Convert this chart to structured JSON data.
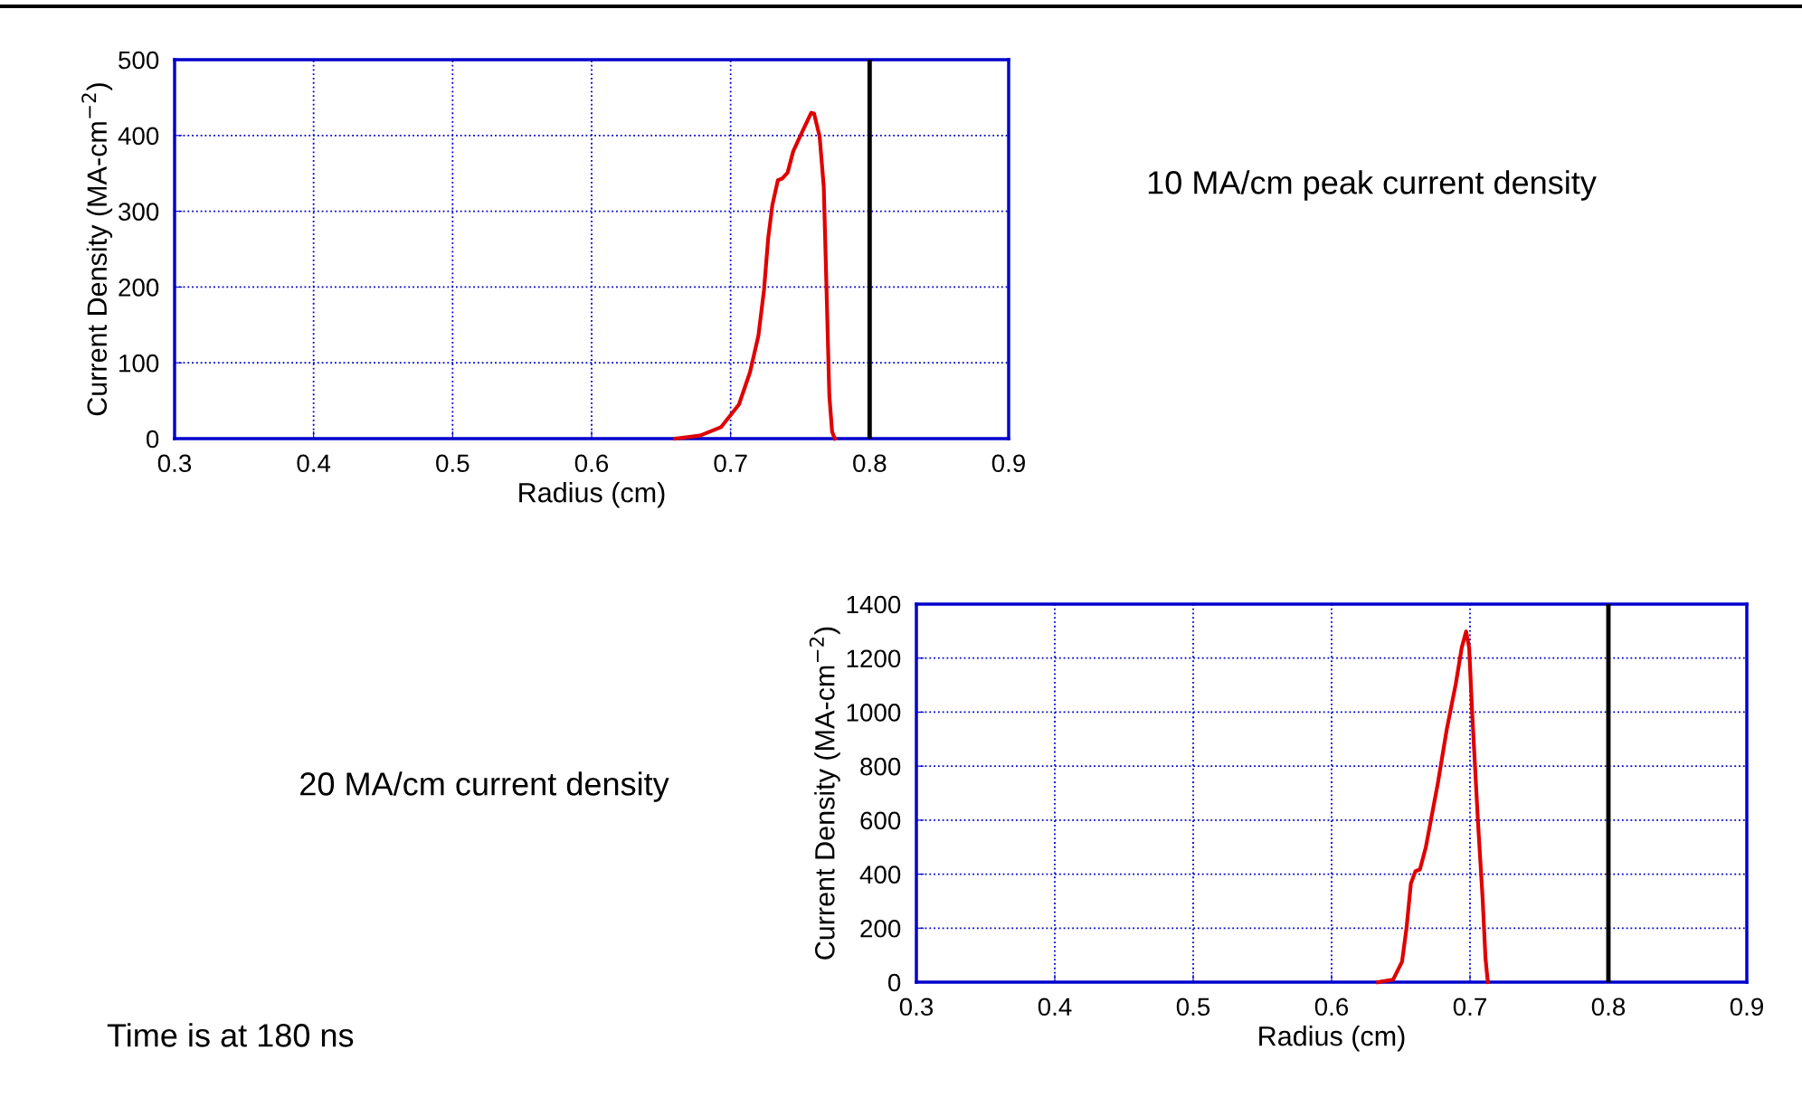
{
  "chart_data": [
    {
      "type": "line",
      "xlabel": "Radius (cm)",
      "ylabel": "Current Density (MA-cm$^{−2}$)",
      "xlim": [
        0.3,
        0.9
      ],
      "xticks": [
        0.3,
        0.4,
        0.5,
        0.6,
        0.7,
        0.8,
        0.9
      ],
      "ylim": [
        0,
        500
      ],
      "yticks": [
        0,
        100,
        200,
        300,
        400,
        500
      ],
      "grid": true,
      "legend": false,
      "marker": "none",
      "line_style": "solid",
      "series": [
        {
          "color": "#e00000",
          "x": [
            0.66,
            0.678,
            0.693,
            0.706,
            0.714,
            0.72,
            0.724,
            0.727,
            0.73,
            0.734,
            0.737,
            0.741,
            0.745,
            0.751,
            0.758,
            0.76,
            0.764,
            0.767,
            0.769,
            0.771,
            0.773,
            0.775
          ],
          "values": [
            0,
            4,
            15,
            45,
            88,
            136,
            196,
            264,
            308,
            341,
            343,
            351,
            379,
            403,
            430,
            429,
            399,
            332,
            196,
            57,
            9,
            0
          ]
        }
      ],
      "ref_lines": [
        {
          "axis": "x",
          "value": 0.8,
          "color": "#000000"
        }
      ],
      "annotations": [
        "10 MA/cm peak current density"
      ]
    },
    {
      "type": "line",
      "xlabel": "Radius (cm)",
      "ylabel": "Current Density (MA-cm$^{−2}$)",
      "xlim": [
        0.3,
        0.9
      ],
      "xticks": [
        0.3,
        0.4,
        0.5,
        0.6,
        0.7,
        0.8,
        0.9
      ],
      "ylim": [
        0,
        1400
      ],
      "yticks": [
        0,
        200,
        400,
        600,
        800,
        1000,
        1200,
        1400
      ],
      "grid": true,
      "legend": false,
      "marker": "none",
      "line_style": "solid",
      "series": [
        {
          "color": "#e00000",
          "x": [
            0.6336,
            0.6444,
            0.6509,
            0.6541,
            0.6573,
            0.6606,
            0.6638,
            0.6681,
            0.6767,
            0.6832,
            0.6897,
            0.694,
            0.6972,
            0.6994,
            0.7015,
            0.7058,
            0.7091,
            0.7112,
            0.7129
          ],
          "values": [
            0,
            9,
            76,
            199,
            366,
            411,
            417,
            500,
            735,
            936,
            1104,
            1238,
            1299,
            1238,
            1003,
            590,
            311,
            87,
            0
          ]
        }
      ],
      "ref_lines": [
        {
          "axis": "x",
          "value": 0.8,
          "color": "#000000"
        }
      ],
      "annotations": [
        "20 MA/cm current density",
        "Time is at 180 ns"
      ]
    }
  ]
}
